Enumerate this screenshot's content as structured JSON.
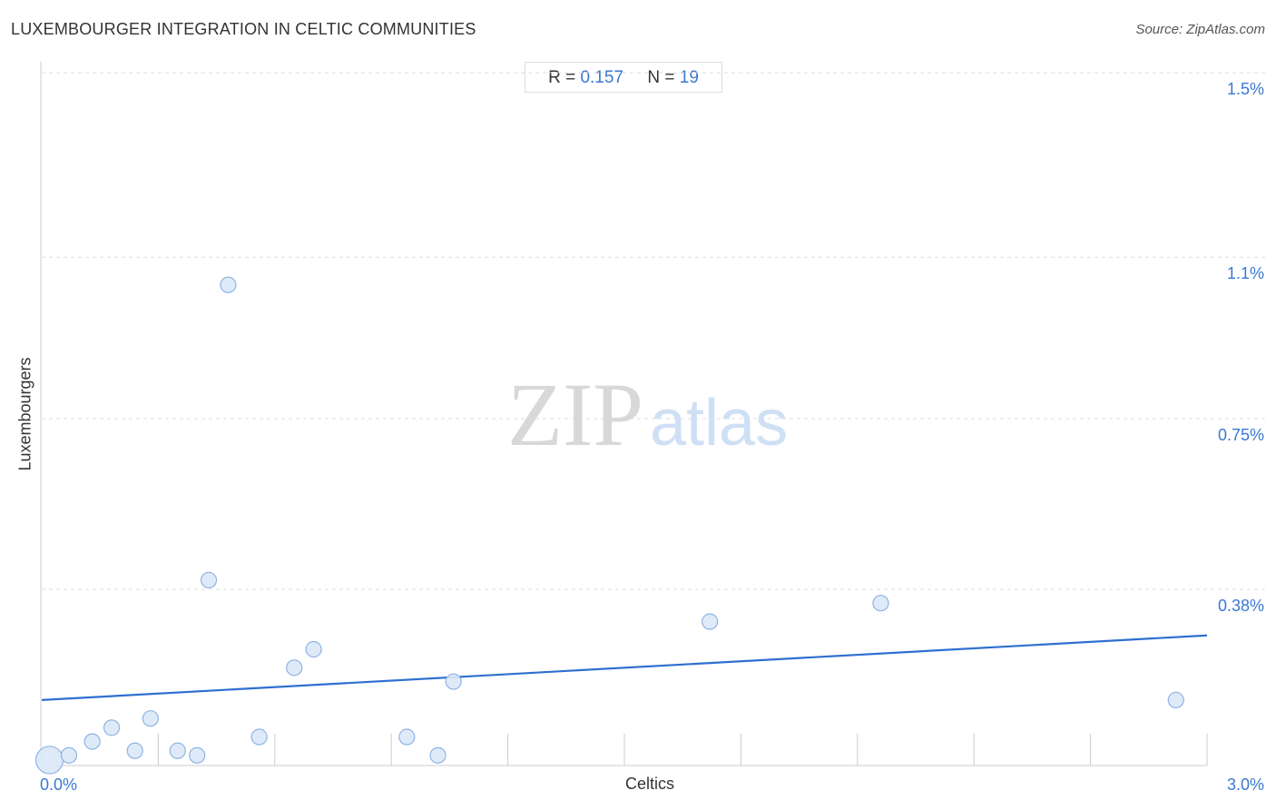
{
  "header": {
    "title": "LUXEMBOURGER INTEGRATION IN CELTIC COMMUNITIES",
    "source": "Source: ZipAtlas.com"
  },
  "stats": {
    "r_label": "R =",
    "r_value": "0.157",
    "n_label": "N =",
    "n_value": "19"
  },
  "watermark": {
    "zip": "ZIP",
    "atlas": "atlas"
  },
  "colors": {
    "point_fill": "#dce8f8",
    "point_stroke": "#8fb3e3",
    "trend_line": "#2f6fd0",
    "tick_text": "#3a78d4",
    "grid": "#dddddd"
  },
  "chart_data": {
    "type": "scatter",
    "xlabel": "Celtics",
    "ylabel": "Luxembourgers",
    "xlim": [
      0.0,
      3.0
    ],
    "ylim": [
      0.0,
      1.5
    ],
    "x_tick_labels": [
      "0.0%",
      "3.0%"
    ],
    "y_ticks": [
      {
        "value": 1.5,
        "label": "1.5%"
      },
      {
        "value": 1.1,
        "label": "1.1%"
      },
      {
        "value": 0.75,
        "label": "0.75%"
      },
      {
        "value": 0.38,
        "label": "0.38%"
      }
    ],
    "grid": "horizontal dashed",
    "points": [
      {
        "x": 0.02,
        "y": 0.01,
        "size": "large"
      },
      {
        "x": 0.07,
        "y": 0.02
      },
      {
        "x": 0.13,
        "y": 0.05
      },
      {
        "x": 0.18,
        "y": 0.08
      },
      {
        "x": 0.24,
        "y": 0.03
      },
      {
        "x": 0.28,
        "y": 0.1
      },
      {
        "x": 0.35,
        "y": 0.03
      },
      {
        "x": 0.4,
        "y": 0.02
      },
      {
        "x": 0.43,
        "y": 0.4
      },
      {
        "x": 0.48,
        "y": 1.04
      },
      {
        "x": 0.56,
        "y": 0.06
      },
      {
        "x": 0.65,
        "y": 0.21
      },
      {
        "x": 0.7,
        "y": 0.25
      },
      {
        "x": 0.94,
        "y": 0.06
      },
      {
        "x": 1.02,
        "y": 0.02
      },
      {
        "x": 1.06,
        "y": 0.18
      },
      {
        "x": 1.72,
        "y": 0.31
      },
      {
        "x": 2.16,
        "y": 0.35
      },
      {
        "x": 2.92,
        "y": 0.14
      }
    ],
    "trend_line": {
      "x": [
        0.0,
        3.0
      ],
      "y": [
        0.14,
        0.28
      ]
    }
  }
}
